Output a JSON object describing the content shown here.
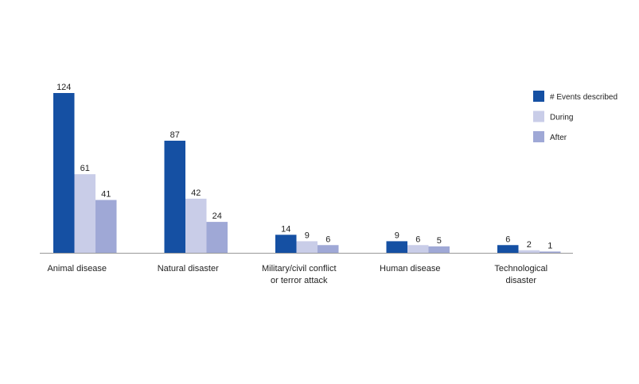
{
  "chart_data": {
    "type": "bar",
    "categories": [
      "Animal disease",
      "Natural disaster",
      "Military/civil conflict\nor terror attack",
      "Human disease",
      "Technological\ndisaster"
    ],
    "series": [
      {
        "name": "# Events described",
        "color": "#1550a3",
        "values": [
          124,
          87,
          14,
          9,
          6
        ]
      },
      {
        "name": "During",
        "color": "#c9cde8",
        "values": [
          61,
          42,
          9,
          6,
          2
        ]
      },
      {
        "name": "After",
        "color": "#9fa8d6",
        "values": [
          41,
          24,
          6,
          5,
          1
        ]
      }
    ],
    "legend": "right"
  }
}
